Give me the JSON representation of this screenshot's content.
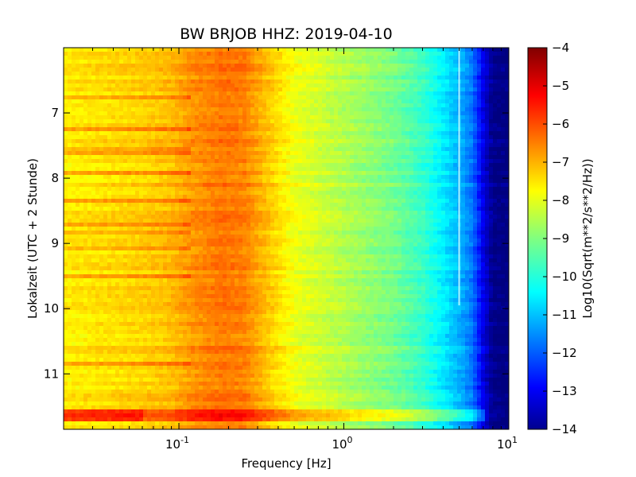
{
  "chart_data": {
    "type": "heatmap",
    "title": "BW BRJOB HHZ: 2019-04-10",
    "xlabel": "Frequency [Hz]",
    "ylabel": "Lokalzeit (UTC + 2 Stunde)",
    "colorbar_label": "Log10(Sqrt(m**2/s**2/Hz))",
    "x_scale": "log",
    "xlim": [
      0.02,
      10
    ],
    "x_ticks": [
      {
        "value": 0.1,
        "base": "10",
        "exp": "-1"
      },
      {
        "value": 1,
        "base": "10",
        "exp": "0"
      },
      {
        "value": 10,
        "base": "10",
        "exp": "1"
      }
    ],
    "ylim": [
      6.0,
      11.85
    ],
    "y_inverted": true,
    "y_ticks": [
      7,
      8,
      9,
      10,
      11
    ],
    "colorbar_range": [
      -14,
      -4
    ],
    "colorbar_ticks": [
      -4,
      -5,
      -6,
      -7,
      -8,
      -9,
      -10,
      -11,
      -12,
      -13,
      -14
    ],
    "colormap": "jet",
    "spectrum_profile": [
      {
        "f": 0.02,
        "v": -7.6
      },
      {
        "f": 0.06,
        "v": -7.3
      },
      {
        "f": 0.09,
        "v": -7.1
      },
      {
        "f": 0.12,
        "v": -6.7
      },
      {
        "f": 0.18,
        "v": -6.4
      },
      {
        "f": 0.25,
        "v": -6.5
      },
      {
        "f": 0.35,
        "v": -7.2
      },
      {
        "f": 0.5,
        "v": -7.9
      },
      {
        "f": 1.0,
        "v": -8.5
      },
      {
        "f": 2.0,
        "v": -9.1
      },
      {
        "f": 3.0,
        "v": -9.7
      },
      {
        "f": 4.0,
        "v": -10.4
      },
      {
        "f": 5.0,
        "v": -11.0
      },
      {
        "f": 6.0,
        "v": -11.6
      },
      {
        "f": 7.0,
        "v": -13.0
      },
      {
        "f": 8.0,
        "v": -13.9
      },
      {
        "f": 10.0,
        "v": -14.0
      }
    ],
    "features": {
      "spectral_line_hz": 5.0,
      "spectral_line_span": [
        6.0,
        9.95
      ],
      "bright_event_span": [
        11.52,
        11.72
      ]
    }
  }
}
